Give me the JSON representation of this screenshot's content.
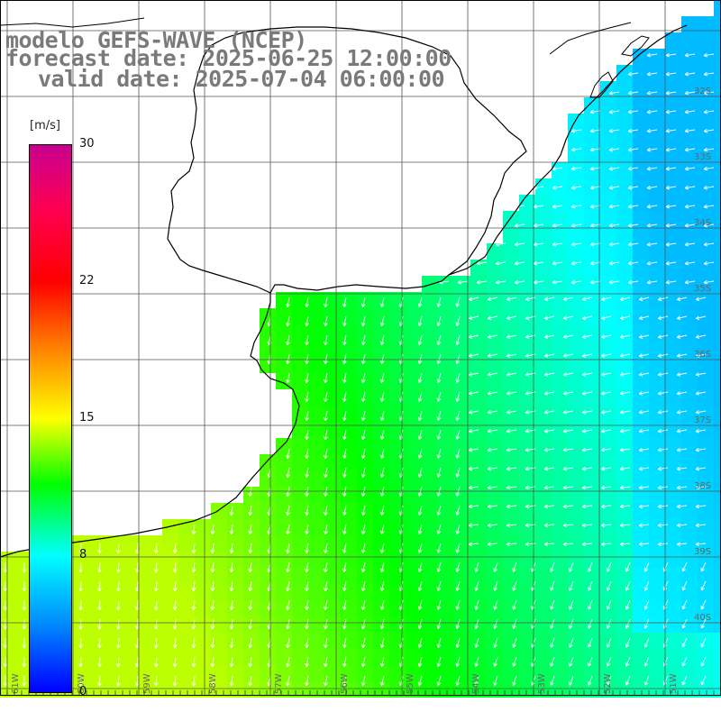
{
  "title": {
    "line1": "modelo GEFS-WAVE (NCEP)",
    "line2": "forecast date: 2025-06-25 12:00:00",
    "line3": "valid date: 2025-07-04 06:00:00"
  },
  "colorbar": {
    "unit": "[m/s]",
    "min": 0,
    "max": 30,
    "ticks": [
      "30",
      "22",
      "15",
      "8",
      "0"
    ],
    "tick_values": [
      30,
      22,
      15,
      8,
      0
    ],
    "colors": [
      "#0000ff",
      "#0090ff",
      "#00ffff",
      "#00ff00",
      "#ffff00",
      "#ff8000",
      "#ff0000",
      "#ff0050",
      "#c80090"
    ]
  },
  "map": {
    "lat_labels": [
      "32S",
      "33S",
      "34S",
      "35S",
      "36S",
      "37S",
      "38S",
      "39S",
      "40S"
    ],
    "lon_labels": [
      "61W",
      "60W",
      "59W",
      "58W",
      "57W",
      "56W",
      "55W",
      "54W",
      "53W",
      "52W",
      "51W"
    ],
    "lat_range": [
      -41,
      -30
    ],
    "lon_range": [
      -61,
      -50
    ],
    "land_color": "#ffffff",
    "grid_color": "#555555",
    "coast_color": "#000000",
    "arrow_color": "#ffffff"
  }
}
